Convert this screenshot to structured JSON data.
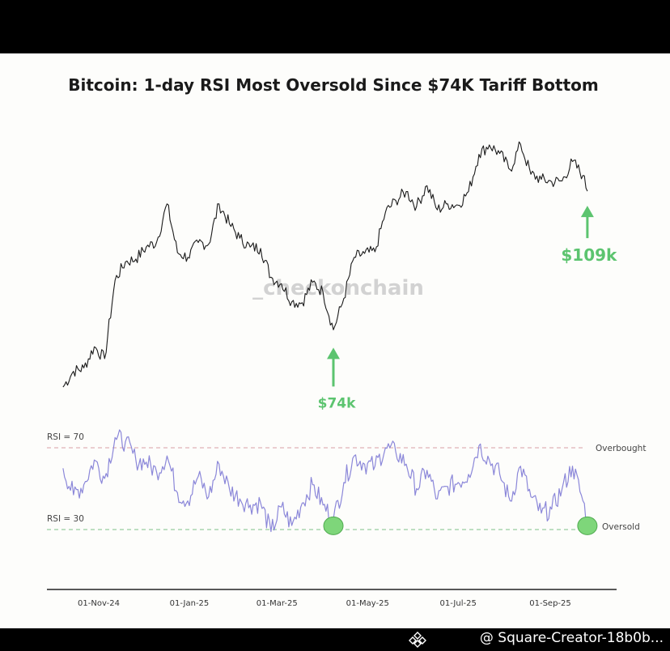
{
  "chart_data": [
    {
      "type": "line",
      "title": "Bitcoin: 1-day RSI Most Oversold Since $74K Tariff Bottom",
      "watermark": "_checkonchain",
      "series": [
        {
          "values": [
            [
              "2024-10-08",
              62800
            ],
            [
              "2024-10-15",
              66500
            ],
            [
              "2024-10-22",
              67300
            ],
            [
              "2024-10-29",
              72300
            ],
            [
              "2024-11-05",
              69500
            ],
            [
              "2024-11-12",
              88000
            ],
            [
              "2024-11-19",
              92300
            ],
            [
              "2024-11-26",
              93000
            ],
            [
              "2024-12-03",
              95800
            ],
            [
              "2024-12-10",
              97000
            ],
            [
              "2024-12-17",
              106000
            ],
            [
              "2024-12-24",
              94500
            ],
            [
              "2024-12-31",
              93400
            ],
            [
              "2025-01-07",
              96900
            ],
            [
              "2025-01-14",
              96500
            ],
            [
              "2025-01-21",
              106000
            ],
            [
              "2025-01-28",
              101300
            ],
            [
              "2025-02-04",
              97900
            ],
            [
              "2025-02-11",
              95800
            ],
            [
              "2025-02-18",
              95500
            ],
            [
              "2025-02-25",
              88700
            ],
            [
              "2025-03-04",
              87200
            ],
            [
              "2025-03-11",
              82900
            ],
            [
              "2025-03-18",
              82700
            ],
            [
              "2025-03-25",
              87500
            ],
            [
              "2025-04-01",
              85200
            ],
            [
              "2025-04-08",
              76300
            ],
            [
              "2025-04-15",
              83700
            ],
            [
              "2025-04-22",
              93400
            ],
            [
              "2025-04-29",
              94300
            ],
            [
              "2025-05-06",
              94700
            ],
            [
              "2025-05-13",
              104000
            ],
            [
              "2025-05-20",
              106800
            ],
            [
              "2025-05-27",
              108900
            ],
            [
              "2025-06-03",
              105400
            ],
            [
              "2025-06-10",
              110300
            ],
            [
              "2025-06-17",
              104600
            ],
            [
              "2025-06-24",
              106000
            ],
            [
              "2025-07-01",
              105700
            ],
            [
              "2025-07-08",
              108900
            ],
            [
              "2025-07-15",
              117700
            ],
            [
              "2025-07-22",
              119900
            ],
            [
              "2025-07-29",
              117900
            ],
            [
              "2025-08-05",
              114100
            ],
            [
              "2025-08-12",
              120100
            ],
            [
              "2025-08-19",
              113000
            ],
            [
              "2025-08-26",
              111800
            ],
            [
              "2025-09-02",
              111200
            ],
            [
              "2025-09-09",
              111400
            ],
            [
              "2025-09-16",
              116000
            ],
            [
              "2025-09-23",
              112700
            ],
            [
              "2025-09-26",
              109000
            ]
          ]
        }
      ],
      "annotations": [
        {
          "text": "$74k",
          "date": "2025-04-08",
          "value": 74000
        },
        {
          "text": "$109k",
          "date": "2025-09-26",
          "value": 109000
        }
      ]
    },
    {
      "type": "line",
      "x_ticks": [
        "01-Nov-24",
        "01-Jan-25",
        "01-Mar-25",
        "01-May-25",
        "01-Jul-25",
        "01-Sep-25"
      ],
      "ylim": [
        24,
        80
      ],
      "series": [
        {
          "values": [
            [
              "2024-10-08",
              60
            ],
            [
              "2024-10-15",
              47
            ],
            [
              "2024-10-22",
              52
            ],
            [
              "2024-10-29",
              64
            ],
            [
              "2024-11-05",
              55
            ],
            [
              "2024-11-12",
              75
            ],
            [
              "2024-11-19",
              73
            ],
            [
              "2024-11-26",
              64
            ],
            [
              "2024-12-03",
              63
            ],
            [
              "2024-12-10",
              58
            ],
            [
              "2024-12-17",
              66
            ],
            [
              "2024-12-24",
              48
            ],
            [
              "2024-12-31",
              44
            ],
            [
              "2025-01-07",
              56
            ],
            [
              "2025-01-14",
              46
            ],
            [
              "2025-01-21",
              62
            ],
            [
              "2025-01-28",
              50
            ],
            [
              "2025-02-04",
              45
            ],
            [
              "2025-02-11",
              42
            ],
            [
              "2025-02-18",
              43
            ],
            [
              "2025-02-25",
              29
            ],
            [
              "2025-03-04",
              41
            ],
            [
              "2025-03-11",
              32
            ],
            [
              "2025-03-18",
              43
            ],
            [
              "2025-03-25",
              52
            ],
            [
              "2025-04-01",
              42
            ],
            [
              "2025-04-08",
              35
            ],
            [
              "2025-04-15",
              53
            ],
            [
              "2025-04-22",
              66
            ],
            [
              "2025-04-29",
              62
            ],
            [
              "2025-05-06",
              61
            ],
            [
              "2025-05-13",
              70
            ],
            [
              "2025-05-20",
              68
            ],
            [
              "2025-05-27",
              62
            ],
            [
              "2025-06-03",
              50
            ],
            [
              "2025-06-10",
              59
            ],
            [
              "2025-06-17",
              45
            ],
            [
              "2025-06-24",
              51
            ],
            [
              "2025-07-01",
              53
            ],
            [
              "2025-07-08",
              57
            ],
            [
              "2025-07-15",
              71
            ],
            [
              "2025-07-22",
              64
            ],
            [
              "2025-07-29",
              57
            ],
            [
              "2025-08-05",
              44
            ],
            [
              "2025-08-12",
              61
            ],
            [
              "2025-08-19",
              46
            ],
            [
              "2025-08-26",
              38
            ],
            [
              "2025-09-02",
              40
            ],
            [
              "2025-09-09",
              50
            ],
            [
              "2025-09-16",
              61
            ],
            [
              "2025-09-23",
              44
            ],
            [
              "2025-09-26",
              35
            ]
          ]
        }
      ],
      "levels": [
        {
          "label": "RSI = 70",
          "tag": "Overbought",
          "value": 70
        },
        {
          "label": "RSI = 30",
          "tag": "Oversold",
          "value": 30
        }
      ],
      "highlights": [
        {
          "date": "2025-04-08",
          "value": 35
        },
        {
          "date": "2025-09-26",
          "value": 35
        }
      ]
    }
  ],
  "footer": {
    "text": "@ Square-Creator-18b0b..."
  },
  "colors": {
    "price_line": "#1a1a1a",
    "rsi_line": "#8b87d9",
    "annotation": "#5cc46f",
    "highlight": "#7ed67a",
    "overbought_line": "#d9a0a6",
    "oversold_line": "#7fc18a"
  }
}
